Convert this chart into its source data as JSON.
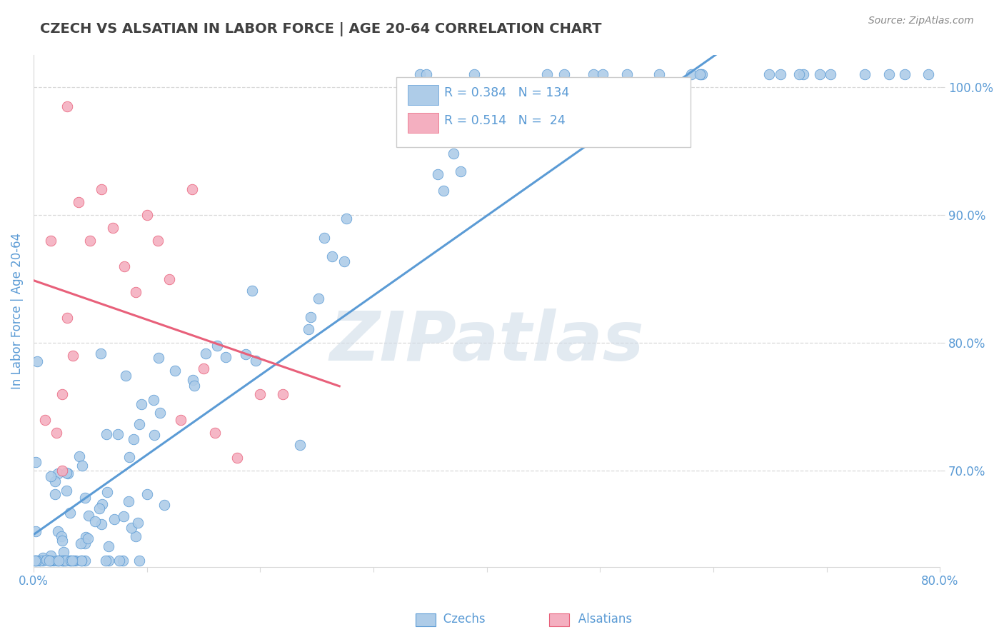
{
  "title": "CZECH VS ALSATIAN IN LABOR FORCE | AGE 20-64 CORRELATION CHART",
  "source": "Source: ZipAtlas.com",
  "xlabel": "",
  "ylabel": "In Labor Force | Age 20-64",
  "xlim": [
    0.0,
    0.8
  ],
  "ylim": [
    0.625,
    1.025
  ],
  "yticks": [
    0.7,
    0.8,
    0.9,
    1.0
  ],
  "ytick_labels": [
    "70.0%",
    "80.0%",
    "90.0%",
    "100.0%"
  ],
  "xtick_labels_show": [
    "0.0%",
    "80.0%"
  ],
  "czech_R": "0.384",
  "czech_N": "134",
  "alsatian_R": "0.514",
  "alsatian_N": "24",
  "czech_color": "#aecce8",
  "alsatian_color": "#f4afc0",
  "czech_line_color": "#5b9bd5",
  "alsatian_line_color": "#e8607a",
  "axis_color": "#5b9bd5",
  "title_color": "#404040",
  "watermark_text": "ZIPatlas",
  "watermark_color": "#d0dce8",
  "grid_color": "#d8d8d8",
  "legend_edge_color": "#cccccc",
  "bottom_legend_labels": [
    "Czechs",
    "Alsatians"
  ]
}
